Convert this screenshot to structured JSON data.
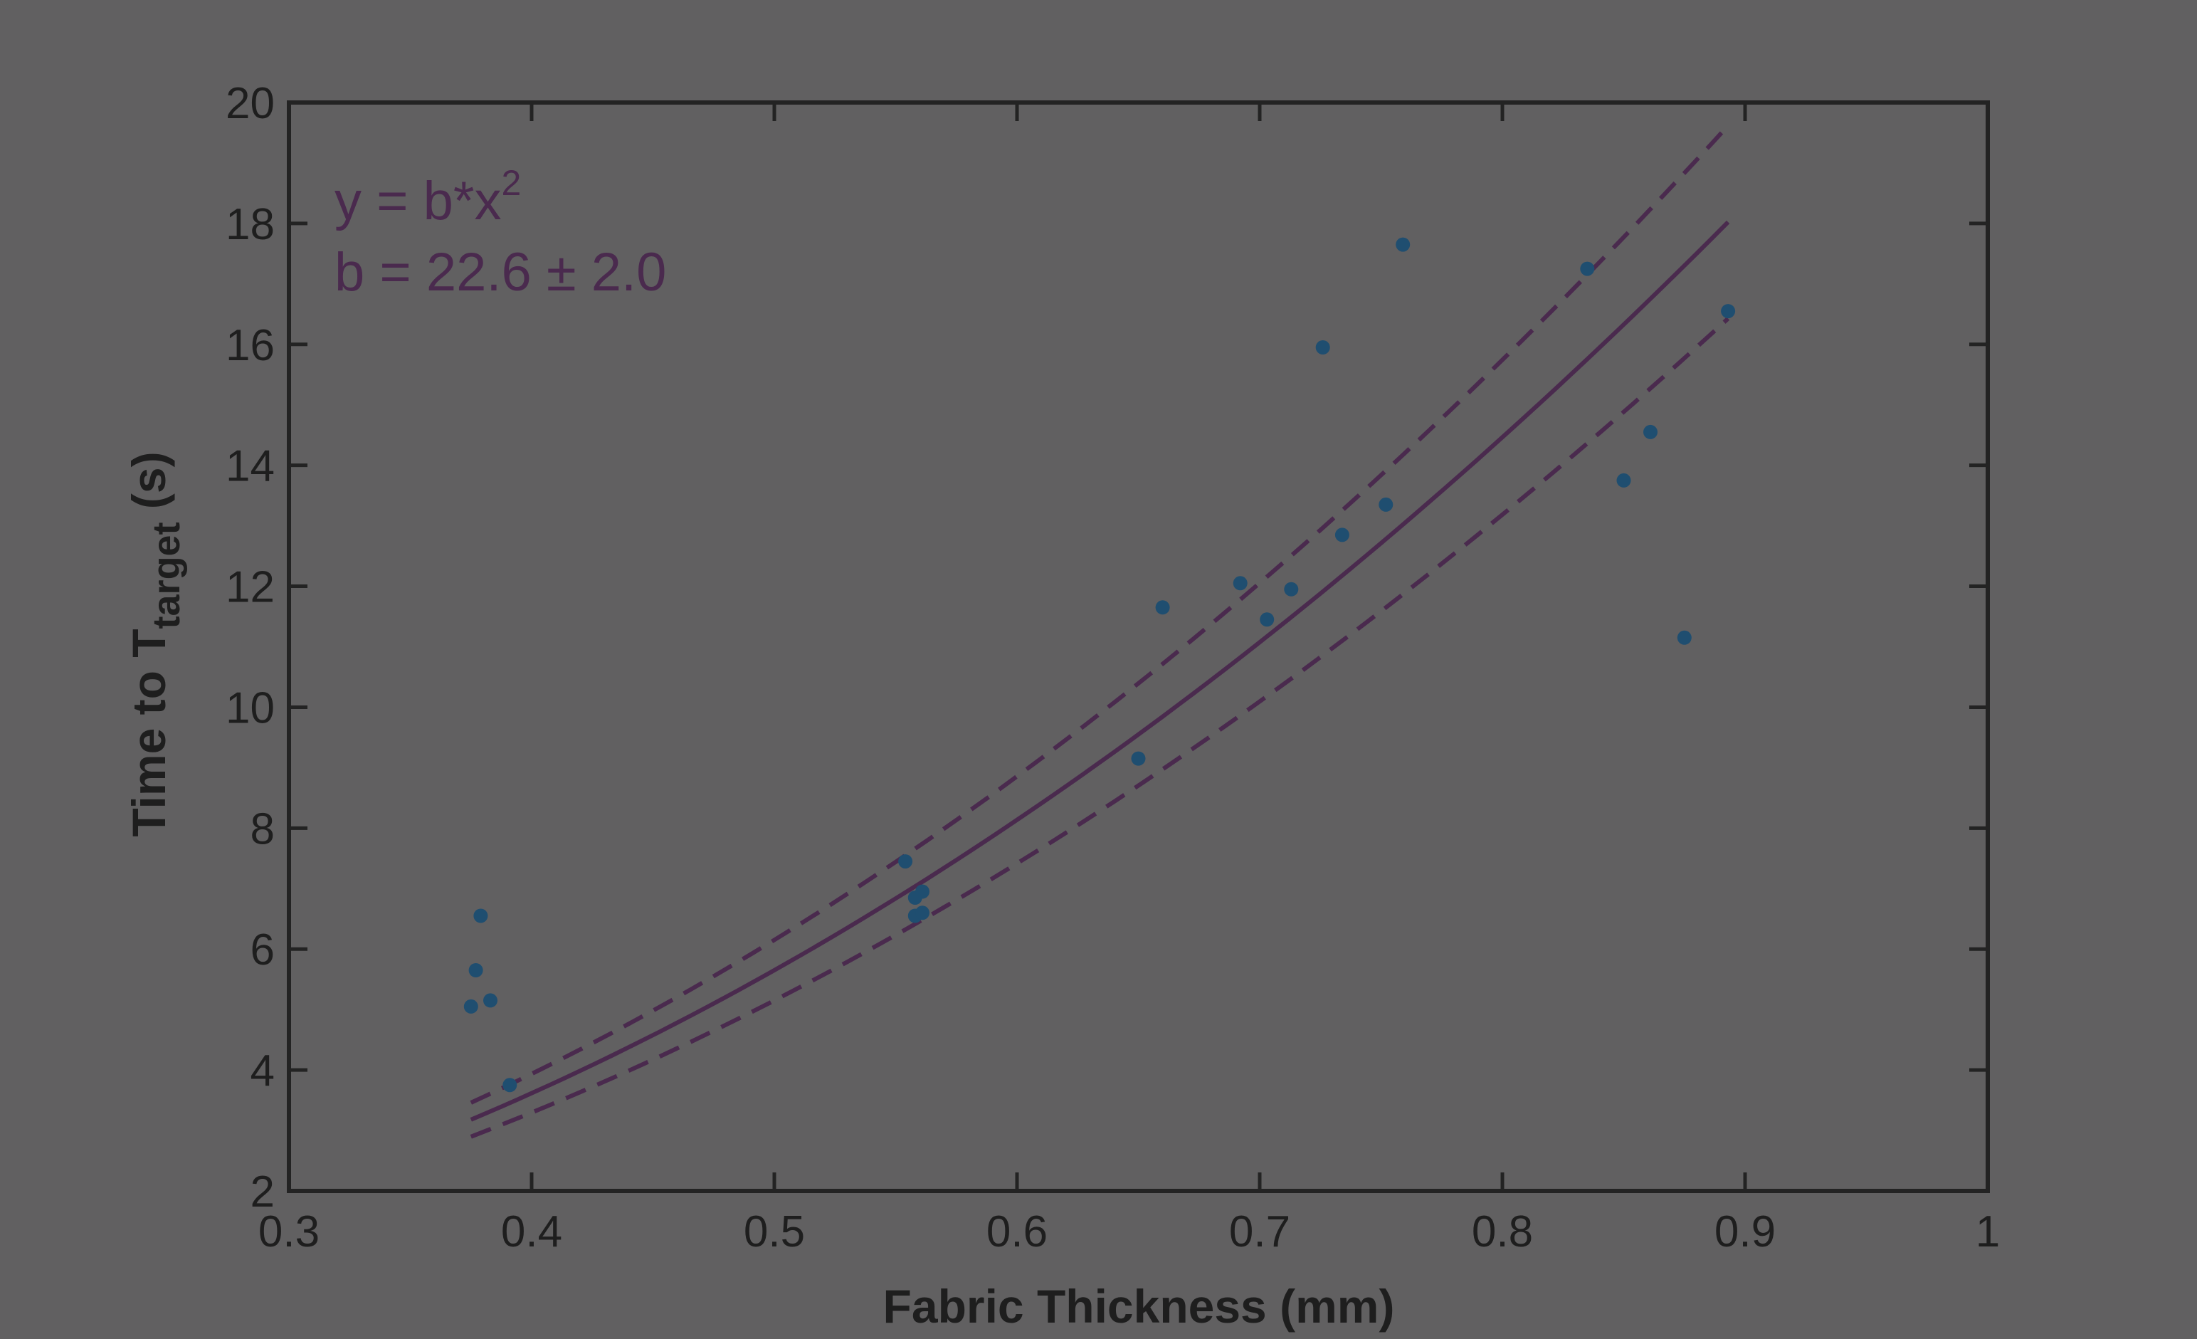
{
  "chart_data": {
    "type": "scatter",
    "xlabel": "Fabric Thickness (mm)",
    "ylabel": {
      "main": "Time to T",
      "subscript": "target",
      "suffix": " (s)"
    },
    "xlim": [
      0.3,
      1.0
    ],
    "ylim": [
      2,
      20
    ],
    "xticks": [
      0.3,
      0.4,
      0.5,
      0.6,
      0.7,
      0.8,
      0.9,
      1
    ],
    "xtick_labels": [
      "0.3",
      "0.4",
      "0.5",
      "0.6",
      "0.7",
      "0.8",
      "0.9",
      "1"
    ],
    "yticks": [
      2,
      4,
      6,
      8,
      10,
      12,
      14,
      16,
      18,
      20
    ],
    "ytick_labels": [
      "2",
      "4",
      "6",
      "8",
      "10",
      "12",
      "14",
      "16",
      "18",
      "20"
    ],
    "grid": false,
    "annotations": {
      "equation": {
        "base": "y = b*x",
        "sup": "2"
      },
      "coefficient": "b = 22.6 ± 2.0"
    },
    "fit": {
      "model": "y = b*x^2",
      "b": 22.6,
      "b_err": 2.0,
      "x_range": [
        0.375,
        0.893
      ]
    },
    "series": [
      {
        "kind": "scatter",
        "color": "#1f4e70",
        "points": [
          [
            0.375,
            5.05
          ],
          [
            0.377,
            5.65
          ],
          [
            0.379,
            6.55
          ],
          [
            0.383,
            5.15
          ],
          [
            0.391,
            3.75
          ],
          [
            0.554,
            7.45
          ],
          [
            0.558,
            6.85
          ],
          [
            0.558,
            6.55
          ],
          [
            0.561,
            6.95
          ],
          [
            0.561,
            6.6
          ],
          [
            0.65,
            9.15
          ],
          [
            0.66,
            11.65
          ],
          [
            0.692,
            12.05
          ],
          [
            0.703,
            11.45
          ],
          [
            0.713,
            11.95
          ],
          [
            0.726,
            15.95
          ],
          [
            0.734,
            12.85
          ],
          [
            0.752,
            13.35
          ],
          [
            0.759,
            17.65
          ],
          [
            0.835,
            17.25
          ],
          [
            0.85,
            13.75
          ],
          [
            0.861,
            14.55
          ],
          [
            0.875,
            11.15
          ],
          [
            0.893,
            16.55
          ]
        ]
      }
    ],
    "colors": {
      "background": "#616061",
      "axes": "#232323",
      "fit_line": "#4a2a4e",
      "points": "#1f4e70"
    }
  }
}
